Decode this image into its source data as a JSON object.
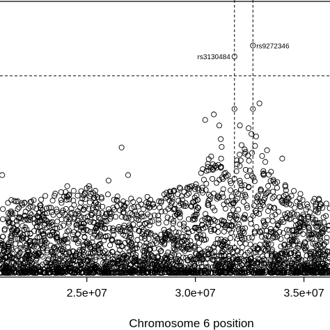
{
  "chart_data": {
    "type": "scatter",
    "title": "",
    "xlabel": "Chromosome 6 position",
    "ylabel": "",
    "xlim": [
      21000000,
      36200000
    ],
    "ylim": [
      0,
      10
    ],
    "x_ticks": [
      {
        "value": 25000000,
        "label": "2.5e+07"
      },
      {
        "value": 30000000,
        "label": "3.0e+07"
      },
      {
        "value": 35000000,
        "label": "3.5e+07"
      }
    ],
    "threshold_y": 7.3,
    "marker": "open-circle",
    "labeled_points": [
      {
        "name": "rs3130484",
        "x": 31800000,
        "y": 8.0
      },
      {
        "name": "rs9272346",
        "x": 32650000,
        "y": 8.4
      }
    ],
    "vertical_lines_x": [
      31800000,
      32650000
    ],
    "notable_points": [
      {
        "x": 31800000,
        "y": 6.1
      },
      {
        "x": 32650000,
        "y": 6.1
      },
      {
        "x": 32950000,
        "y": 6.3
      },
      {
        "x": 30450000,
        "y": 5.7
      },
      {
        "x": 31100000,
        "y": 5.5
      },
      {
        "x": 30850000,
        "y": 5.9
      },
      {
        "x": 26600000,
        "y": 4.7
      },
      {
        "x": 24100000,
        "y": 3.3
      },
      {
        "x": 25100000,
        "y": 3.3
      },
      {
        "x": 26000000,
        "y": 3.5
      },
      {
        "x": 26900000,
        "y": 3.7
      },
      {
        "x": 21100000,
        "y": 3.7
      },
      {
        "x": 34000000,
        "y": 4.3
      },
      {
        "x": 33300000,
        "y": 4.6
      },
      {
        "x": 35700000,
        "y": 2.8
      },
      {
        "x": 32050000,
        "y": 5.5
      },
      {
        "x": 32450000,
        "y": 5.4
      },
      {
        "x": 32800000,
        "y": 5.1
      }
    ],
    "density_profile": [
      {
        "x": 21000000,
        "ymax": 2.6
      },
      {
        "x": 22000000,
        "ymax": 2.7
      },
      {
        "x": 23000000,
        "ymax": 2.8
      },
      {
        "x": 24000000,
        "ymax": 3.0
      },
      {
        "x": 25000000,
        "ymax": 3.1
      },
      {
        "x": 26000000,
        "ymax": 3.0
      },
      {
        "x": 27000000,
        "ymax": 2.7
      },
      {
        "x": 28000000,
        "ymax": 2.8
      },
      {
        "x": 29000000,
        "ymax": 3.0
      },
      {
        "x": 30000000,
        "ymax": 3.4
      },
      {
        "x": 30800000,
        "ymax": 4.4
      },
      {
        "x": 31200000,
        "ymax": 4.9
      },
      {
        "x": 31600000,
        "ymax": 3.5
      },
      {
        "x": 32200000,
        "ymax": 4.8
      },
      {
        "x": 32700000,
        "ymax": 5.2
      },
      {
        "x": 33100000,
        "ymax": 4.2
      },
      {
        "x": 33800000,
        "ymax": 3.4
      },
      {
        "x": 34500000,
        "ymax": 3.0
      },
      {
        "x": 35200000,
        "ymax": 2.8
      },
      {
        "x": 36200000,
        "ymax": 2.7
      }
    ]
  }
}
